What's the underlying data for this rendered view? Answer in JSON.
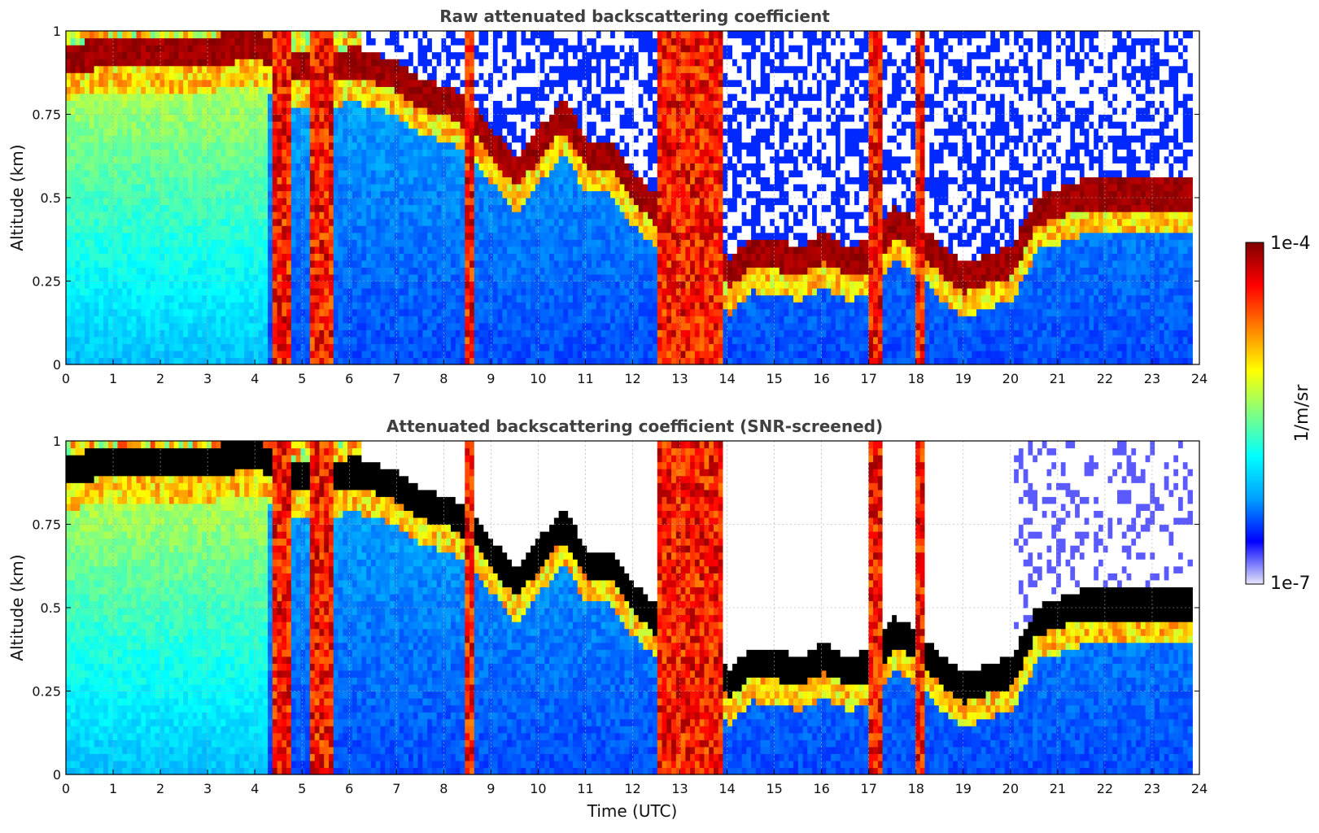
{
  "chart_data": [
    {
      "type": "heatmap",
      "title": "Raw attenuated backscattering coefficient",
      "xlabel": "",
      "ylabel": "Altitude (km)",
      "xlim": [
        0,
        24
      ],
      "ylim": [
        0,
        1
      ],
      "xticks": [
        0,
        1,
        2,
        3,
        4,
        5,
        6,
        7,
        8,
        9,
        10,
        11,
        12,
        13,
        14,
        15,
        16,
        17,
        18,
        19,
        20,
        21,
        22,
        23,
        24
      ],
      "yticks": [
        0,
        0.25,
        0.5,
        0.75,
        1
      ],
      "ytick_labels": [
        "0",
        "0.25",
        "0.5",
        "0.75",
        "1"
      ],
      "grid": true,
      "screened": false,
      "colormap": "jet",
      "top_layer": [
        [
          0,
          0.9
        ],
        [
          0.5,
          0.92
        ],
        [
          1,
          0.93
        ],
        [
          2,
          0.93
        ],
        [
          2.5,
          0.92
        ],
        [
          3,
          0.93
        ],
        [
          4,
          0.95
        ],
        [
          4.5,
          0.9
        ],
        [
          5,
          0.88
        ],
        [
          5.5,
          0.87
        ],
        [
          6,
          0.9
        ],
        [
          6.5,
          0.88
        ],
        [
          7,
          0.85
        ],
        [
          7.5,
          0.8
        ],
        [
          8,
          0.78
        ],
        [
          8.5,
          0.74
        ],
        [
          9,
          0.65
        ],
        [
          9.5,
          0.56
        ],
        [
          10,
          0.66
        ],
        [
          10.5,
          0.74
        ],
        [
          11,
          0.62
        ],
        [
          11.5,
          0.62
        ],
        [
          12,
          0.52
        ],
        [
          12.5,
          0.45
        ],
        [
          13,
          0.42
        ],
        [
          13.5,
          0.36
        ],
        [
          14,
          0.26
        ],
        [
          14.5,
          0.33
        ],
        [
          15,
          0.32
        ],
        [
          15.5,
          0.3
        ],
        [
          16,
          0.34
        ],
        [
          16.5,
          0.3
        ],
        [
          17,
          0.32
        ],
        [
          17.5,
          0.42
        ],
        [
          18,
          0.38
        ],
        [
          18.5,
          0.3
        ],
        [
          19,
          0.25
        ],
        [
          19.5,
          0.28
        ],
        [
          20,
          0.3
        ],
        [
          20.5,
          0.45
        ],
        [
          21.5,
          0.5
        ]
      ],
      "precip_bands": [
        [
          4.3,
          4.7
        ],
        [
          5.1,
          5.6
        ],
        [
          8.4,
          8.6
        ],
        [
          12.5,
          13.9
        ],
        [
          16.9,
          17.2
        ],
        [
          17.9,
          18.1
        ]
      ]
    },
    {
      "type": "heatmap",
      "title": "Attenuated backscattering coefficient (SNR-screened)",
      "xlabel": "Time (UTC)",
      "ylabel": "Altitude (km)",
      "xlim": [
        0,
        24
      ],
      "ylim": [
        0,
        1
      ],
      "xticks": [
        0,
        1,
        2,
        3,
        4,
        5,
        6,
        7,
        8,
        9,
        10,
        11,
        12,
        13,
        14,
        15,
        16,
        17,
        18,
        19,
        20,
        21,
        22,
        23,
        24
      ],
      "yticks": [
        0,
        0.25,
        0.5,
        0.75,
        1
      ],
      "ytick_labels": [
        "0",
        "0.25",
        "0.5",
        "0.75",
        "1"
      ],
      "grid": true,
      "screened": true,
      "colormap": "jet",
      "top_layer": [
        [
          0,
          0.9
        ],
        [
          0.5,
          0.92
        ],
        [
          1,
          0.93
        ],
        [
          2,
          0.93
        ],
        [
          2.5,
          0.92
        ],
        [
          3,
          0.93
        ],
        [
          4,
          0.95
        ],
        [
          4.5,
          0.9
        ],
        [
          5,
          0.88
        ],
        [
          5.5,
          0.87
        ],
        [
          6,
          0.9
        ],
        [
          6.5,
          0.88
        ],
        [
          7,
          0.85
        ],
        [
          7.5,
          0.8
        ],
        [
          8,
          0.78
        ],
        [
          8.5,
          0.74
        ],
        [
          9,
          0.65
        ],
        [
          9.5,
          0.56
        ],
        [
          10,
          0.66
        ],
        [
          10.5,
          0.74
        ],
        [
          11,
          0.62
        ],
        [
          11.5,
          0.62
        ],
        [
          12,
          0.52
        ],
        [
          12.5,
          0.45
        ],
        [
          13,
          0.42
        ],
        [
          13.5,
          0.36
        ],
        [
          14,
          0.26
        ],
        [
          14.5,
          0.33
        ],
        [
          15,
          0.32
        ],
        [
          15.5,
          0.3
        ],
        [
          16,
          0.34
        ],
        [
          16.5,
          0.3
        ],
        [
          17,
          0.32
        ],
        [
          17.5,
          0.42
        ],
        [
          18,
          0.38
        ],
        [
          18.5,
          0.3
        ],
        [
          19,
          0.25
        ],
        [
          19.5,
          0.28
        ],
        [
          20,
          0.3
        ],
        [
          20.5,
          0.45
        ],
        [
          21.5,
          0.5
        ]
      ],
      "precip_bands": [
        [
          4.3,
          4.7
        ],
        [
          5.1,
          5.6
        ],
        [
          8.4,
          8.6
        ],
        [
          12.5,
          13.9
        ],
        [
          16.9,
          17.2
        ],
        [
          17.9,
          18.1
        ]
      ]
    }
  ],
  "colorbar": {
    "label": "1/m/sr",
    "max_label": "1e-4",
    "min_label": "1e-7",
    "colormap": "jet",
    "colors": [
      "#e6e6fa",
      "#0000ff",
      "#00a0ff",
      "#00ffff",
      "#80ff80",
      "#ffff00",
      "#ff8000",
      "#ff0000",
      "#800000"
    ]
  }
}
